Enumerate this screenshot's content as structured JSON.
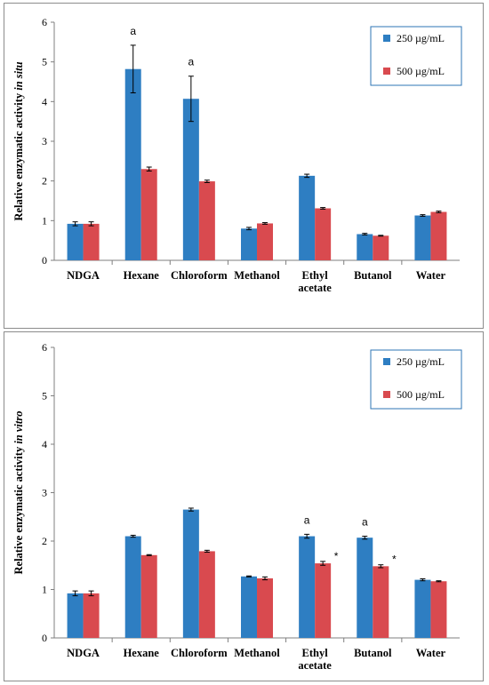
{
  "colors": {
    "s250": "#2e7ec2",
    "s500": "#d94a4f",
    "axis": "#7f7f7f",
    "legend_border": "#2e75b6"
  },
  "chart_data": [
    {
      "type": "bar",
      "ylabel_parts": [
        "Relative enzymatic activity ",
        "in situ"
      ],
      "ylim": [
        0,
        6
      ],
      "yticks": [
        "0",
        "1",
        "2",
        "3",
        "4",
        "5",
        "6"
      ],
      "grid": false,
      "legend_position": "top-right",
      "categories": [
        "NDGA",
        "Hexane",
        "Chloroform",
        "Methanol",
        "Ethyl acetate",
        "Butanol",
        "Water"
      ],
      "category_lines": [
        [
          "NDGA"
        ],
        [
          "Hexane"
        ],
        [
          "Chloroform"
        ],
        [
          "Methanol"
        ],
        [
          "Ethyl",
          "acetate"
        ],
        [
          "Butanol"
        ],
        [
          "Water"
        ]
      ],
      "series": [
        {
          "name": "250 µg/mL",
          "values": [
            0.92,
            4.82,
            4.07,
            0.8,
            2.13,
            0.66,
            1.13
          ],
          "errors": [
            0.05,
            0.6,
            0.57,
            0.03,
            0.04,
            0.02,
            0.02
          ],
          "annotations": [
            "",
            "a",
            "a",
            "",
            "",
            "",
            ""
          ]
        },
        {
          "name": "500 µg/mL",
          "values": [
            0.92,
            2.3,
            1.99,
            0.93,
            1.31,
            0.62,
            1.22
          ],
          "errors": [
            0.05,
            0.05,
            0.03,
            0.02,
            0.02,
            0.01,
            0.02
          ],
          "annotations": [
            "",
            "",
            "",
            "",
            "",
            "",
            ""
          ]
        }
      ]
    },
    {
      "type": "bar",
      "ylabel_parts": [
        "Relative enzymatic activity ",
        "in vitro"
      ],
      "ylim": [
        0,
        6
      ],
      "yticks": [
        "0",
        "1",
        "2",
        "3",
        "4",
        "5",
        "6"
      ],
      "grid": false,
      "legend_position": "top-right",
      "categories": [
        "NDGA",
        "Hexane",
        "Chloroform",
        "Methanol",
        "Ethyl acetate",
        "Butanol",
        "Water"
      ],
      "category_lines": [
        [
          "NDGA"
        ],
        [
          "Hexane"
        ],
        [
          "Chloroform"
        ],
        [
          "Methanol"
        ],
        [
          "Ethyl",
          "acetate"
        ],
        [
          "Butanol"
        ],
        [
          "Water"
        ]
      ],
      "series": [
        {
          "name": "250 µg/mL",
          "values": [
            0.92,
            2.1,
            2.65,
            1.27,
            2.1,
            2.07,
            1.2
          ],
          "errors": [
            0.05,
            0.02,
            0.03,
            0.01,
            0.04,
            0.03,
            0.02
          ],
          "annotations": [
            "",
            "",
            "",
            "",
            "a",
            "a",
            ""
          ]
        },
        {
          "name": "500 µg/mL",
          "values": [
            0.92,
            1.71,
            1.79,
            1.23,
            1.54,
            1.48,
            1.17
          ],
          "errors": [
            0.05,
            0.01,
            0.02,
            0.03,
            0.04,
            0.03,
            0.01
          ],
          "annotations": [
            "",
            "",
            "",
            "",
            "*",
            "*",
            ""
          ]
        }
      ]
    }
  ]
}
